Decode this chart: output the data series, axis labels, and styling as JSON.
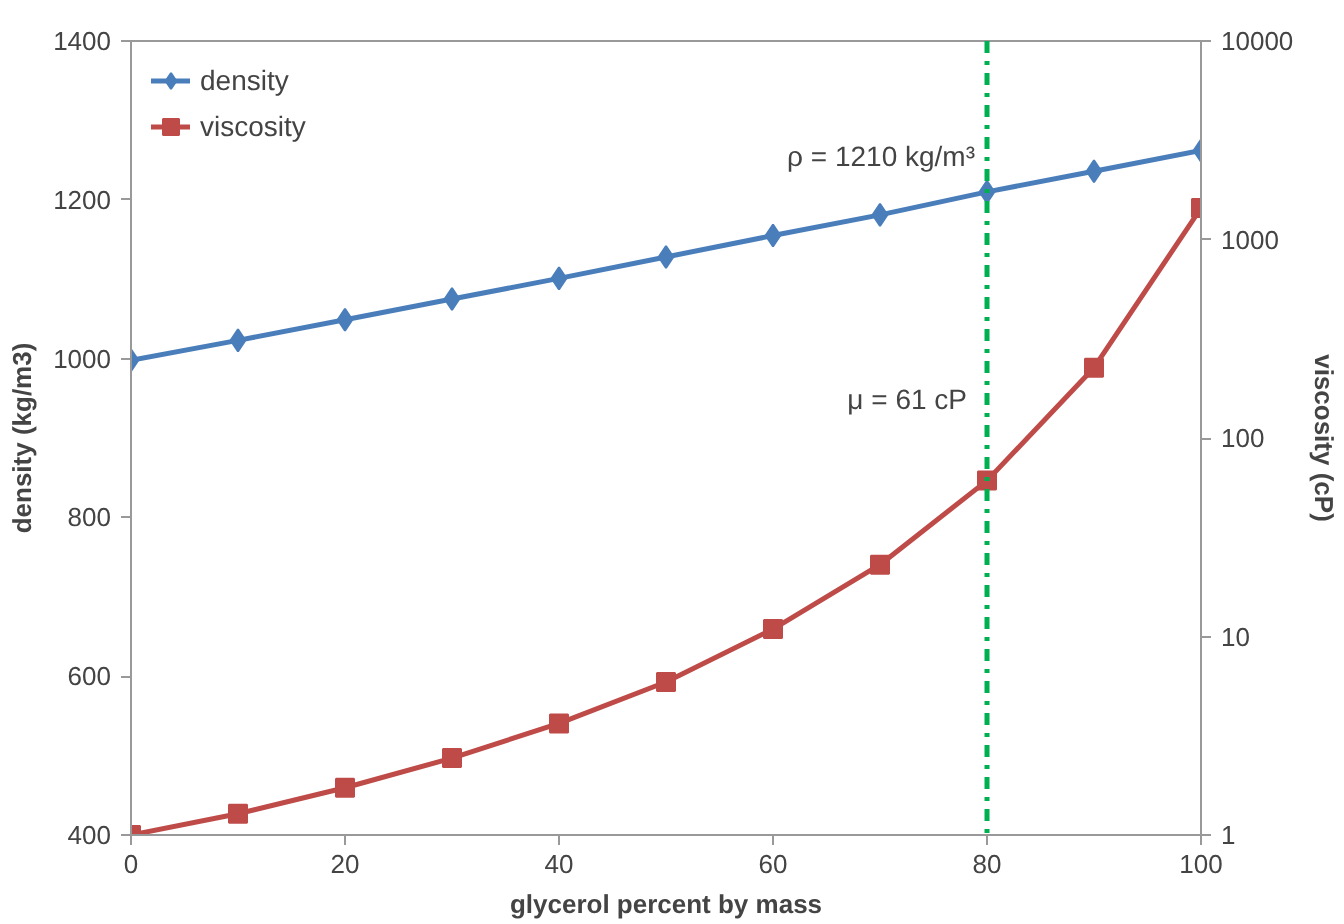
{
  "chart_data": {
    "type": "line",
    "xlabel": "glycerol percent by mass",
    "ylabel": "density (kg/m3)",
    "y2label": "viscosity (cP)",
    "x": [
      0,
      10,
      20,
      30,
      40,
      50,
      60,
      70,
      80,
      90,
      100
    ],
    "series": [
      {
        "name": "density",
        "color": "#4a7ebb",
        "marker": "diamond",
        "values": [
          998,
          1023,
          1049,
          1075,
          1101,
          1128,
          1155,
          1181,
          1210,
          1236,
          1262
        ]
      },
      {
        "name": "viscosity",
        "color": "#be4b48",
        "marker": "square",
        "axis": "y2",
        "values": [
          1,
          1.28,
          1.73,
          2.44,
          3.65,
          5.9,
          10.9,
          23,
          61,
          226,
          1440
        ]
      }
    ],
    "xlim": [
      0,
      100
    ],
    "xticks": [
      0,
      20,
      40,
      60,
      80,
      100
    ],
    "ylim": [
      400,
      1400
    ],
    "yticks": [
      400,
      600,
      800,
      1000,
      1200,
      1400
    ],
    "y2lim": [
      1,
      10000
    ],
    "y2ticks": [
      1,
      10,
      100,
      1000,
      10000
    ],
    "log": "y2",
    "ref_lines": [
      {
        "axis": "x",
        "value": 80,
        "color": "#00b050",
        "line_style": "dashdot"
      }
    ],
    "annotations": [
      {
        "text": "ρ = 1210 kg/m³",
        "x": 80,
        "y": 1210
      },
      "μ = 61 cP"
    ],
    "legend": "top left",
    "grid": false
  }
}
